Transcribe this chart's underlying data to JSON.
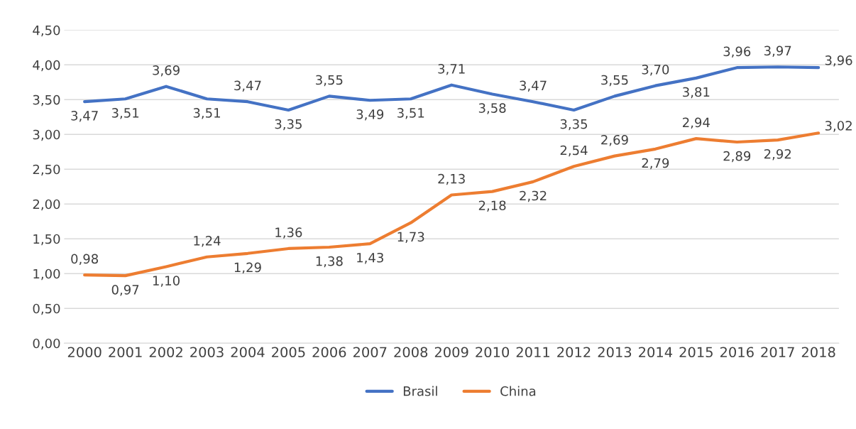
{
  "chart_data": {
    "type": "line",
    "categories": [
      "2000",
      "2001",
      "2002",
      "2003",
      "2004",
      "2005",
      "2006",
      "2007",
      "2008",
      "2009",
      "2010",
      "2011",
      "2012",
      "2013",
      "2014",
      "2015",
      "2016",
      "2017",
      "2018"
    ],
    "series": [
      {
        "name": "Brasil",
        "color": "#4472c4",
        "values": [
          3.47,
          3.51,
          3.69,
          3.51,
          3.47,
          3.35,
          3.55,
          3.49,
          3.51,
          3.71,
          3.58,
          3.47,
          3.35,
          3.55,
          3.7,
          3.81,
          3.96,
          3.97,
          3.96
        ],
        "value_labels": [
          "3,47",
          "3,51",
          "3,69",
          "3,51",
          "3,47",
          "3,35",
          "3,55",
          "3,49",
          "3,51",
          "3,71",
          "3,58",
          "3,47",
          "3,35",
          "3,55",
          "3,70",
          "3,81",
          "3,96",
          "3,97",
          "3,96"
        ]
      },
      {
        "name": "China",
        "color": "#ed7d31",
        "values": [
          0.98,
          0.97,
          1.1,
          1.24,
          1.29,
          1.36,
          1.38,
          1.43,
          1.73,
          2.13,
          2.18,
          2.32,
          2.54,
          2.69,
          2.79,
          2.94,
          2.89,
          2.92,
          3.02
        ],
        "value_labels": [
          "0,98",
          "0,97",
          "1,10",
          "1,24",
          "1,29",
          "1,36",
          "1,38",
          "1,43",
          "1,73",
          "2,13",
          "2,18",
          "2,32",
          "2,54",
          "2,69",
          "2,79",
          "2,94",
          "2,89",
          "2,92",
          "3,02"
        ]
      }
    ],
    "ylim": [
      0,
      4.5
    ],
    "yticks": [
      {
        "value": 0,
        "label": "0,00"
      },
      {
        "value": 0.5,
        "label": "0,50"
      },
      {
        "value": 1,
        "label": "1,00"
      },
      {
        "value": 1.5,
        "label": "1,50"
      },
      {
        "value": 2,
        "label": "2,00"
      },
      {
        "value": 2.5,
        "label": "2,50"
      },
      {
        "value": 3,
        "label": "3,00"
      },
      {
        "value": 3.5,
        "label": "3,50"
      },
      {
        "value": 4,
        "label": "4,00"
      },
      {
        "value": 4.5,
        "label": "4,50"
      }
    ],
    "grid": "y",
    "legend": "bottom",
    "marker": "none",
    "line_style": "solid"
  }
}
